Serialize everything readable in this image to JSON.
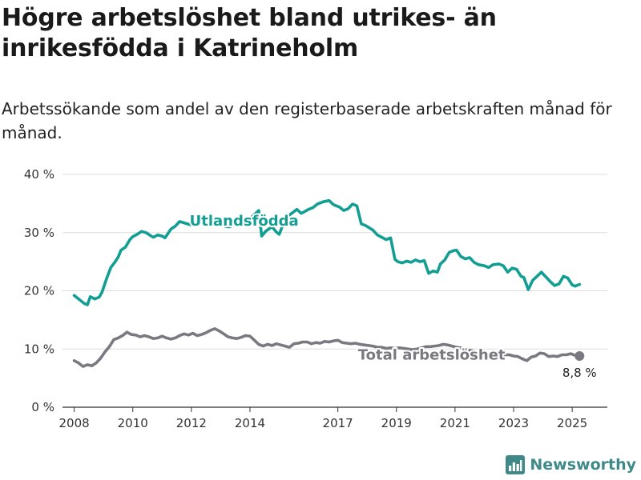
{
  "title": "Högre arbetslöshet bland utrikes- än inrikesfödda i Katrineholm",
  "subtitle": "Arbetssökande som andel av den registerbaserade arbetskraften månad för månad.",
  "brand": "Newsworthy",
  "colors": {
    "foreign_born": "#129e93",
    "total": "#7a7880",
    "brand": "#3f8a89",
    "grid": "#dddddd",
    "text": "#333333"
  },
  "chart_data": {
    "type": "line",
    "title": "Högre arbetslöshet bland utrikes- än inrikesfödda i Katrineholm",
    "subtitle": "Arbetssökande som andel av den registerbaserade arbetskraften månad för månad.",
    "xlabel": "",
    "ylabel": "",
    "xlim": [
      2007.6,
      2026.2
    ],
    "ylim": [
      0,
      40
    ],
    "x_ticks": [
      2008,
      2010,
      2012,
      2014,
      2017,
      2019,
      2021,
      2023,
      2025
    ],
    "x_tick_labels": [
      "2008",
      "2010",
      "2012",
      "2014",
      "2017",
      "2019",
      "2021",
      "2023",
      "2025"
    ],
    "y_ticks": [
      0,
      10,
      20,
      30,
      40
    ],
    "y_tick_labels": [
      "0 %",
      "10 %",
      "20 %",
      "30 %",
      "40 %"
    ],
    "grid": true,
    "legend": "direct-labels",
    "end_label": "8,8 %",
    "series": [
      {
        "name": "Utlandsfödda",
        "color": "#129e93",
        "x": [
          2008.0,
          2008.2,
          2008.35,
          2008.45,
          2008.55,
          2008.7,
          2008.85,
          2008.95,
          2009.1,
          2009.25,
          2009.4,
          2009.5,
          2009.6,
          2009.75,
          2009.9,
          2010.0,
          2010.15,
          2010.3,
          2010.45,
          2010.6,
          2010.7,
          2010.85,
          2011.0,
          2011.1,
          2011.3,
          2011.45,
          2011.6,
          2011.8,
          2012.0,
          2012.2,
          2012.35,
          2012.5,
          2012.65,
          2012.8,
          2013.0,
          2013.15,
          2013.3,
          2013.45,
          2013.6,
          2013.75,
          2013.9,
          2014.0,
          2014.15,
          2014.3,
          2014.4,
          2014.55,
          2014.75,
          2014.9,
          2015.0,
          2015.1,
          2015.25,
          2015.45,
          2015.6,
          2015.75,
          2015.9,
          2016.0,
          2016.15,
          2016.3,
          2016.5,
          2016.7,
          2016.85,
          2016.95,
          2017.05,
          2017.2,
          2017.35,
          2017.5,
          2017.65,
          2017.8,
          2017.95,
          2018.05,
          2018.2,
          2018.35,
          2018.5,
          2018.65,
          2018.8,
          2018.95,
          2019.05,
          2019.2,
          2019.35,
          2019.5,
          2019.65,
          2019.8,
          2019.95,
          2020.1,
          2020.25,
          2020.4,
          2020.5,
          2020.65,
          2020.8,
          2020.95,
          2021.05,
          2021.2,
          2021.35,
          2021.5,
          2021.65,
          2021.8,
          2022.0,
          2022.15,
          2022.3,
          2022.5,
          2022.65,
          2022.8,
          2022.95,
          2023.1,
          2023.25,
          2023.35,
          2023.5,
          2023.65,
          2023.8,
          2023.95,
          2024.1,
          2024.25,
          2024.4,
          2024.55,
          2024.7,
          2024.85,
          2025.0,
          2025.1,
          2025.25
        ],
        "values": [
          19.2,
          18.4,
          17.8,
          17.6,
          19.0,
          18.6,
          18.9,
          19.8,
          22.0,
          24.0,
          25.0,
          25.8,
          27.0,
          27.5,
          28.8,
          29.3,
          29.7,
          30.2,
          30.0,
          29.5,
          29.2,
          29.6,
          29.4,
          29.1,
          30.6,
          31.1,
          31.9,
          31.6,
          31.3,
          31.9,
          32.0,
          31.2,
          31.5,
          31.3,
          31.8,
          31.1,
          31.0,
          31.4,
          31.8,
          32.3,
          31.9,
          32.4,
          33.1,
          33.8,
          29.4,
          30.3,
          31.0,
          30.1,
          29.7,
          31.0,
          32.7,
          33.4,
          34.0,
          33.3,
          33.7,
          34.0,
          34.3,
          34.9,
          35.3,
          35.5,
          34.8,
          34.6,
          34.4,
          33.8,
          34.1,
          34.9,
          34.6,
          31.5,
          31.2,
          30.9,
          30.4,
          29.6,
          29.2,
          28.8,
          29.1,
          25.4,
          25.0,
          24.8,
          25.1,
          24.9,
          25.3,
          25.0,
          25.2,
          23.0,
          23.4,
          23.2,
          24.6,
          25.3,
          26.6,
          26.9,
          27.0,
          25.9,
          25.5,
          25.7,
          24.9,
          24.5,
          24.3,
          24.0,
          24.5,
          24.6,
          24.3,
          23.2,
          23.9,
          23.7,
          22.5,
          22.3,
          20.2,
          21.8,
          22.5,
          23.2,
          22.4,
          21.6,
          20.9,
          21.2,
          22.5,
          22.2,
          21.0,
          20.8,
          21.1
        ]
      },
      {
        "name": "Total arbetslöshet",
        "color": "#7a7880",
        "x": [
          2008.0,
          2008.15,
          2008.3,
          2008.45,
          2008.6,
          2008.75,
          2008.9,
          2009.05,
          2009.2,
          2009.35,
          2009.5,
          2009.65,
          2009.8,
          2009.95,
          2010.1,
          2010.25,
          2010.4,
          2010.55,
          2010.7,
          2010.85,
          2011.0,
          2011.15,
          2011.3,
          2011.45,
          2011.6,
          2011.75,
          2011.9,
          2012.05,
          2012.2,
          2012.35,
          2012.5,
          2012.65,
          2012.8,
          2012.95,
          2013.1,
          2013.25,
          2013.4,
          2013.55,
          2013.7,
          2013.85,
          2014.0,
          2014.15,
          2014.3,
          2014.45,
          2014.6,
          2014.75,
          2014.9,
          2015.05,
          2015.2,
          2015.35,
          2015.5,
          2015.65,
          2015.8,
          2015.95,
          2016.1,
          2016.25,
          2016.4,
          2016.55,
          2016.7,
          2016.85,
          2017.0,
          2017.15,
          2017.3,
          2017.45,
          2017.6,
          2017.75,
          2017.9,
          2018.05,
          2018.2,
          2018.35,
          2018.5,
          2018.65,
          2018.8,
          2018.95,
          2019.1,
          2019.25,
          2019.4,
          2019.55,
          2019.7,
          2019.85,
          2020.0,
          2020.15,
          2020.3,
          2020.45,
          2020.6,
          2020.75,
          2020.9,
          2021.05,
          2021.2,
          2021.35,
          2021.5,
          2021.65,
          2021.8,
          2021.95,
          2022.1,
          2022.25,
          2022.4,
          2022.55,
          2022.7,
          2022.85,
          2023.0,
          2023.15,
          2023.3,
          2023.45,
          2023.6,
          2023.75,
          2023.9,
          2024.05,
          2024.2,
          2024.35,
          2024.5,
          2024.65,
          2024.8,
          2024.95,
          2025.1,
          2025.25
        ],
        "values": [
          8.0,
          7.6,
          7.0,
          7.3,
          7.1,
          7.6,
          8.4,
          9.5,
          10.4,
          11.6,
          11.9,
          12.3,
          12.9,
          12.5,
          12.4,
          12.1,
          12.3,
          12.1,
          11.8,
          11.9,
          12.2,
          11.9,
          11.7,
          11.9,
          12.3,
          12.6,
          12.4,
          12.7,
          12.3,
          12.5,
          12.8,
          13.2,
          13.5,
          13.1,
          12.6,
          12.1,
          11.9,
          11.8,
          12.0,
          12.3,
          12.2,
          11.5,
          10.8,
          10.5,
          10.8,
          10.6,
          10.9,
          10.7,
          10.5,
          10.3,
          10.9,
          11.0,
          11.2,
          11.2,
          10.9,
          11.1,
          11.0,
          11.3,
          11.2,
          11.4,
          11.5,
          11.1,
          11.0,
          10.9,
          11.0,
          10.8,
          10.7,
          10.6,
          10.5,
          10.3,
          10.3,
          10.1,
          10.2,
          10.1,
          10.2,
          10.1,
          10.0,
          9.9,
          10.0,
          10.2,
          10.4,
          10.4,
          10.5,
          10.6,
          10.8,
          10.7,
          10.5,
          10.3,
          10.2,
          9.9,
          9.8,
          9.6,
          9.4,
          9.6,
          9.2,
          9.0,
          9.2,
          9.1,
          9.0,
          9.0,
          8.8,
          8.7,
          8.3,
          8.0,
          8.6,
          8.8,
          9.3,
          9.2,
          8.7,
          8.8,
          8.7,
          9.0,
          9.0,
          9.2,
          8.9,
          8.8
        ]
      }
    ],
    "direct_labels": [
      {
        "text": "Utlandsfödda",
        "series": 0,
        "x": 2013.8,
        "y": 32.0
      },
      {
        "text": "Total arbetslöshet",
        "series": 1,
        "x": 2020.2,
        "y": 9.0
      }
    ]
  }
}
